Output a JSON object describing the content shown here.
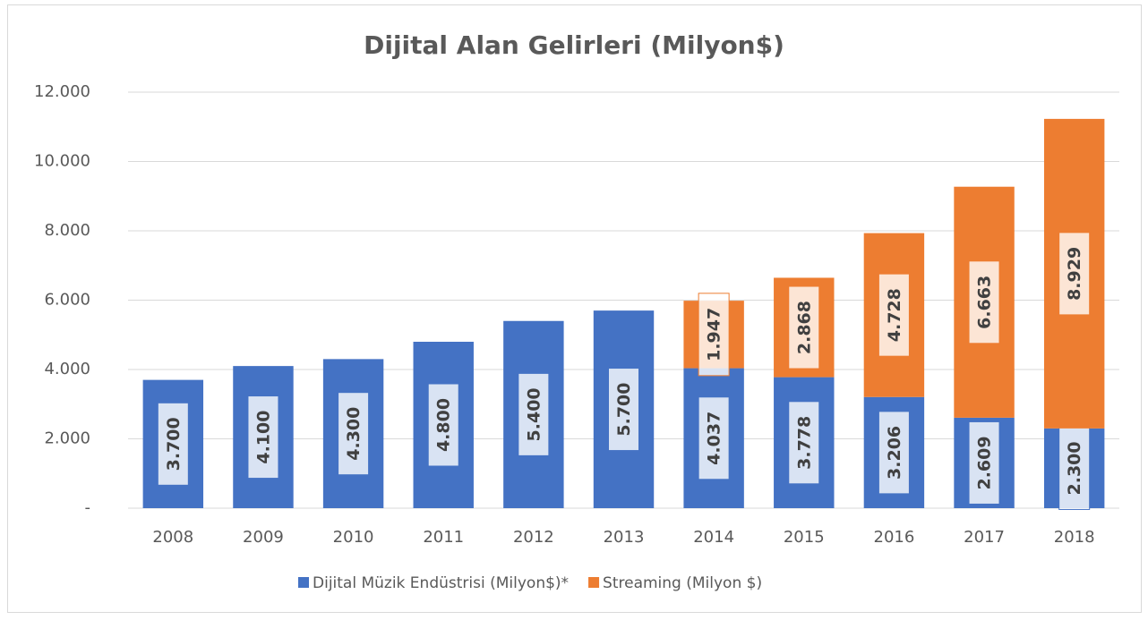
{
  "chart_data": {
    "type": "stacked-bar",
    "title": "Dijital Alan Gelirleri (Milyon$)",
    "categories": [
      "2008",
      "2009",
      "2010",
      "2011",
      "2012",
      "2013",
      "2014",
      "2015",
      "2016",
      "2017",
      "2018"
    ],
    "series": [
      {
        "name": "Dijital Müzik Endüstrisi (Milyon$)*",
        "color": "#4472c4",
        "values": [
          3700,
          4100,
          4300,
          4800,
          5400,
          5700,
          4037,
          3778,
          3206,
          2609,
          2300
        ],
        "value_labels": [
          "3.700",
          "4.100",
          "4.300",
          "4.800",
          "5.400",
          "5.700",
          "4.037",
          "3.778",
          "3.206",
          "2.609",
          "2.300"
        ]
      },
      {
        "name": "Streaming (Milyon $)",
        "color": "#ed7d31",
        "values": [
          null,
          null,
          null,
          null,
          null,
          null,
          1947,
          2868,
          4728,
          6663,
          8929
        ],
        "value_labels": [
          null,
          null,
          null,
          null,
          null,
          null,
          "1.947",
          "2.868",
          "4.728",
          "6.663",
          "8.929"
        ]
      }
    ],
    "ylim": [
      0,
      12000
    ],
    "yticks": [
      {
        "value": 0,
        "label": "-"
      },
      {
        "value": 2000,
        "label": "2.000"
      },
      {
        "value": 4000,
        "label": "4.000"
      },
      {
        "value": 6000,
        "label": "6.000"
      },
      {
        "value": 8000,
        "label": "8.000"
      },
      {
        "value": 10000,
        "label": "10.000"
      },
      {
        "value": 12000,
        "label": "12.000"
      }
    ],
    "grid": true,
    "legend": "bottom"
  }
}
